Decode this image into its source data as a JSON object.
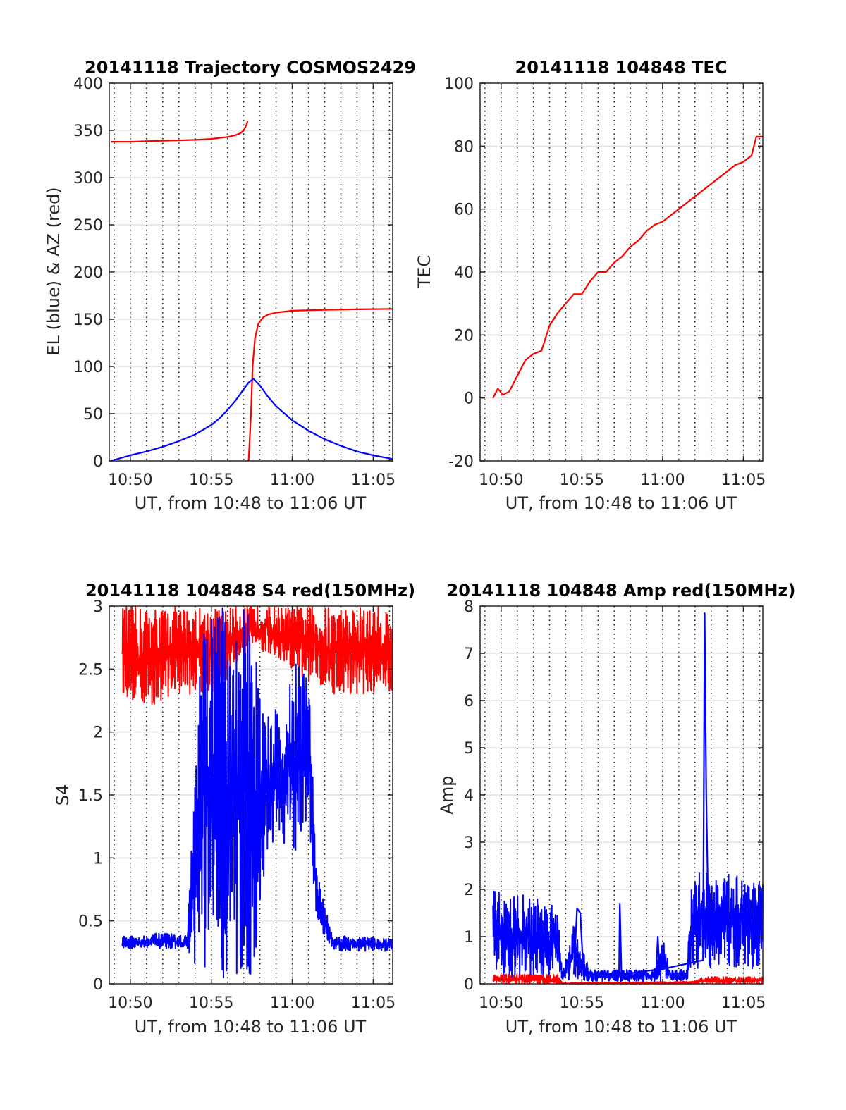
{
  "chart_data": [
    {
      "type": "line",
      "title": "20141118 Trajectory COSMOS2429",
      "xlabel": "UT, from 10:48 to 11:06 UT",
      "ylabel": "EL (blue) & AZ (red)",
      "xlim": [
        48.7,
        66.2
      ],
      "ylim": [
        0,
        400
      ],
      "x_ticks": [
        50,
        55,
        60,
        65
      ],
      "x_tick_labels": [
        "10:50",
        "10:55",
        "11:00",
        "11:05"
      ],
      "y_ticks": [
        0,
        50,
        100,
        150,
        200,
        250,
        300,
        350,
        400
      ],
      "y_tick_labels": [
        "0",
        "50",
        "100",
        "150",
        "200",
        "250",
        "300",
        "350",
        "400"
      ],
      "grid": true,
      "series": [
        {
          "color": "#ff0000",
          "x": [
            48.8,
            50,
            51,
            52,
            53,
            54,
            55,
            55.5,
            56,
            56.5,
            56.8,
            57,
            57.15,
            57.25,
            57.3,
            57.35,
            57.45,
            57.55,
            57.7,
            57.9,
            58.2,
            58.5,
            59,
            60,
            62,
            64,
            66.2
          ],
          "y": [
            338,
            338,
            338.5,
            339,
            339.5,
            340,
            341,
            342,
            343,
            345,
            347,
            350,
            355,
            360,
            0,
            15,
            50,
            100,
            130,
            145,
            152,
            155,
            157,
            159,
            160,
            160.5,
            161
          ]
        },
        {
          "color": "#0000ff",
          "x": [
            48.8,
            50,
            51,
            52,
            53,
            54,
            55,
            55.5,
            56,
            56.5,
            57,
            57.3,
            57.6,
            58,
            58.5,
            59,
            60,
            61,
            62,
            63,
            64,
            65,
            66.2
          ],
          "y": [
            0,
            6,
            10,
            15,
            21,
            28,
            38,
            45,
            54,
            64,
            76,
            83,
            87,
            80,
            68,
            58,
            43,
            32,
            23,
            16,
            10,
            6,
            2
          ]
        }
      ]
    },
    {
      "type": "line",
      "title": "20141118 104848 TEC",
      "xlabel": "UT, from 10:48 to 11:06 UT",
      "ylabel": "TEC",
      "xlim": [
        48.7,
        66.2
      ],
      "ylim": [
        -20,
        100
      ],
      "x_ticks": [
        50,
        55,
        60,
        65
      ],
      "x_tick_labels": [
        "10:50",
        "10:55",
        "11:00",
        "11:05"
      ],
      "y_ticks": [
        -20,
        0,
        20,
        40,
        60,
        80,
        100
      ],
      "y_tick_labels": [
        "-20",
        "0",
        "20",
        "40",
        "60",
        "80",
        "100"
      ],
      "grid": true,
      "series": [
        {
          "color": "#ff0000",
          "x": [
            49.5,
            49.8,
            50.1,
            50.5,
            51,
            51.5,
            52,
            52.5,
            53,
            53.5,
            54,
            54.5,
            55,
            55.5,
            56,
            56.5,
            57,
            57.5,
            58,
            58.5,
            59,
            59.5,
            60,
            60.5,
            61,
            61.5,
            62,
            62.5,
            63,
            63.5,
            64,
            64.5,
            65,
            65.5,
            65.8,
            66.2
          ],
          "y": [
            0,
            3,
            1,
            2,
            7,
            12,
            14,
            15,
            23,
            27,
            30,
            33,
            33,
            37,
            40,
            40,
            43,
            45,
            48,
            50,
            53,
            55,
            56,
            58,
            60,
            62,
            64,
            66,
            68,
            70,
            72,
            74,
            75,
            77,
            83,
            83
          ]
        }
      ]
    },
    {
      "type": "line",
      "title": "20141118 104848 S4 red(150MHz)",
      "xlabel": "UT, from 10:48 to 11:06 UT",
      "ylabel": "S4",
      "xlim": [
        48.7,
        66.2
      ],
      "ylim": [
        0,
        3
      ],
      "x_ticks": [
        50,
        55,
        60,
        65
      ],
      "x_tick_labels": [
        "10:50",
        "10:55",
        "11:00",
        "11:05"
      ],
      "y_ticks": [
        0,
        0.5,
        1,
        1.5,
        2,
        2.5,
        3
      ],
      "y_tick_labels": [
        "0",
        "0.5",
        "1",
        "1.5",
        "2",
        "2.5",
        "3"
      ],
      "grid": true,
      "series": [
        {
          "color": "#ff0000",
          "style": "noise",
          "x": [
            49.5,
            50.5,
            51.5,
            52.5,
            53.5,
            54.5,
            55.5,
            56.5,
            57.5,
            58.5,
            59.5,
            60.5,
            61.5,
            62.5,
            63.5,
            64.5,
            65.5,
            66.2
          ],
          "y_low": [
            2.3,
            2.2,
            2.2,
            2.3,
            2.3,
            2.3,
            2.3,
            2.5,
            2.7,
            2.6,
            2.5,
            2.4,
            2.4,
            2.3,
            2.3,
            2.3,
            2.3,
            2.3
          ],
          "y_high": [
            3,
            3,
            3,
            3,
            3,
            3,
            3,
            3,
            3,
            3,
            3,
            3,
            3,
            3,
            3,
            3,
            3,
            3
          ]
        },
        {
          "color": "#0000ff",
          "style": "noise",
          "x": [
            49.5,
            50.5,
            51.5,
            52.5,
            53.5,
            54.5,
            55.5,
            56.5,
            57.5,
            58,
            58.5,
            59,
            59.5,
            60,
            60.5,
            61,
            61.5,
            62.5,
            63.5,
            64.5,
            65.5,
            66.2
          ],
          "y_low": [
            0.28,
            0.28,
            0.28,
            0.28,
            0.28,
            0,
            0,
            0,
            0,
            0.5,
            1.0,
            1.2,
            1.1,
            0.9,
            1.2,
            1.3,
            0.5,
            0.26,
            0.26,
            0.26,
            0.26,
            0.26
          ],
          "y_high": [
            0.38,
            0.38,
            0.4,
            0.4,
            0.38,
            3,
            3,
            3,
            3,
            2.4,
            2.2,
            2.2,
            2.0,
            2.6,
            2.5,
            2.5,
            0.9,
            0.38,
            0.38,
            0.38,
            0.36,
            0.36
          ]
        }
      ]
    },
    {
      "type": "line",
      "title": "20141118 104848 Amp red(150MHz)",
      "xlabel": "UT, from 10:48 to 11:06 UT",
      "ylabel": "Amp",
      "xlim": [
        48.7,
        66.2
      ],
      "ylim": [
        0,
        8
      ],
      "x_ticks": [
        50,
        55,
        60,
        65
      ],
      "x_tick_labels": [
        "10:50",
        "10:55",
        "11:00",
        "11:05"
      ],
      "y_ticks": [
        0,
        1,
        2,
        3,
        4,
        5,
        6,
        7,
        8
      ],
      "y_tick_labels": [
        "0",
        "1",
        "2",
        "3",
        "4",
        "5",
        "6",
        "7",
        "8"
      ],
      "grid": true,
      "series": [
        {
          "color": "#0000ff",
          "style": "noise",
          "x": [
            49.5,
            50.5,
            51.5,
            52.5,
            53.5,
            53.8,
            54.5,
            55.5,
            56.5,
            57.5,
            58.5,
            59.5,
            60,
            60.5,
            61.5,
            61.8,
            62.5,
            63.5,
            64.5,
            65.5,
            66.2
          ],
          "y_low": [
            0.1,
            0.1,
            0.1,
            0.1,
            0.1,
            0.1,
            0.05,
            0.05,
            0.05,
            0.05,
            0.05,
            0.05,
            0.05,
            0.05,
            0.05,
            0.3,
            0.3,
            0.3,
            0.3,
            0.3,
            0.3
          ],
          "y_high": [
            2.0,
            1.9,
            1.9,
            1.8,
            1.8,
            0.25,
            1.3,
            0.3,
            0.3,
            0.3,
            0.3,
            0.3,
            1.0,
            0.3,
            0.3,
            2.2,
            2.5,
            2.2,
            2.4,
            2.4,
            2.2
          ]
        },
        {
          "color": "#0000ff",
          "x": [
            54.5,
            54.7,
            54.9,
            55.1,
            57.3,
            57.35,
            57.45,
            59.6,
            59.7,
            59.8,
            62.5,
            62.6,
            62.7,
            62.75,
            62.85
          ],
          "y": [
            0.2,
            1.6,
            1.5,
            0.2,
            0.2,
            1.7,
            0.2,
            0.3,
            1.0,
            0.3,
            0.5,
            7.85,
            4.0,
            3.0,
            0.8
          ]
        },
        {
          "color": "#ff0000",
          "style": "noise",
          "x": [
            49.5,
            50.5,
            51.5,
            52.5,
            53.5,
            53.8,
            61.8,
            62.5,
            63.5,
            64.5,
            65.5,
            66.2
          ],
          "y_low": [
            0,
            0,
            0,
            0,
            0,
            0,
            0,
            0,
            0,
            0,
            0,
            0
          ],
          "y_high": [
            0.2,
            0.2,
            0.2,
            0.2,
            0.2,
            0.02,
            0.05,
            0.15,
            0.15,
            0.15,
            0.15,
            0.15
          ]
        }
      ]
    }
  ]
}
